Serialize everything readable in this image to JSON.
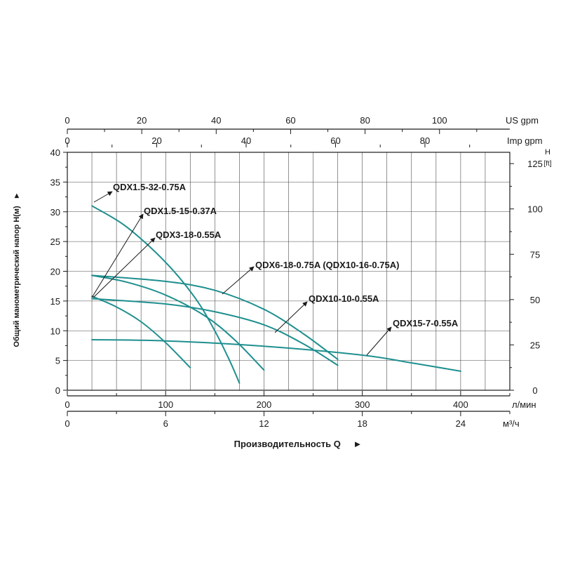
{
  "colors": {
    "curve": "#1f8f8f",
    "text": "#1a1a1a",
    "grid": "#4a4a4a"
  },
  "chart_data": {
    "type": "line",
    "title": "",
    "xlabel": "Производительность Q",
    "ylabel": "Общий манометрический напор Н(м)",
    "arrow_glyph": "►",
    "grid": true,
    "x_unit": "л/мин",
    "y_unit": "H",
    "xlim": [
      0,
      450
    ],
    "ylim": [
      0,
      40
    ],
    "x_ticks": [
      0,
      100,
      200,
      300,
      400
    ],
    "y_ticks": [
      0,
      5,
      10,
      15,
      20,
      25,
      30,
      35,
      40
    ],
    "secondary_axes": {
      "us_gpm": {
        "unit": "US gpm",
        "ticks": [
          0,
          20,
          40,
          60,
          80,
          100
        ]
      },
      "imp_gpm": {
        "unit": "Imp gpm",
        "ticks": [
          0,
          20,
          40,
          60,
          80
        ]
      },
      "m3h": {
        "unit": "м³/ч",
        "ticks": [
          0,
          6,
          12,
          18,
          24
        ]
      },
      "ft": {
        "unit_top": "H",
        "unit_bottom": "[ft]",
        "ticks": [
          0,
          25,
          50,
          75,
          100,
          125
        ]
      }
    },
    "series": [
      {
        "name": "QDX1.5-32-0.75A",
        "x": [
          25,
          60,
          100,
          130,
          150,
          165,
          175
        ],
        "y": [
          31,
          27.5,
          21.5,
          15.5,
          10,
          5,
          1.2
        ]
      },
      {
        "name": "QDX1.5-15-0.37A",
        "x": [
          25,
          50,
          75,
          100,
          125
        ],
        "y": [
          15.8,
          14,
          11.5,
          8,
          3.8
        ]
      },
      {
        "name": "QDX3-18-0.55A",
        "x": [
          25,
          60,
          100,
          140,
          170,
          200
        ],
        "y": [
          19.3,
          18.2,
          16,
          12.5,
          8.5,
          3.4
        ]
      },
      {
        "name": "QDX6-18-0.75A (QDX10-16-0.75A)",
        "x": [
          25,
          100,
          150,
          200,
          240,
          275
        ],
        "y": [
          19.3,
          18.3,
          16.8,
          13.6,
          9.5,
          5.2
        ]
      },
      {
        "name": "QDX10-10-0.55A",
        "x": [
          25,
          100,
          150,
          200,
          240,
          275
        ],
        "y": [
          15.4,
          14.5,
          13.2,
          11,
          7.8,
          4.2
        ]
      },
      {
        "name": "QDX15-7-0.55A",
        "x": [
          25,
          100,
          200,
          300,
          350,
          400
        ],
        "y": [
          8.5,
          8.3,
          7.4,
          5.9,
          4.6,
          3.2
        ]
      }
    ]
  }
}
